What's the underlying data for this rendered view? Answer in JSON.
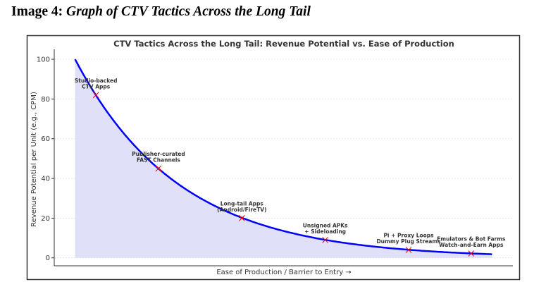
{
  "heading": {
    "prefix": "Image 4:",
    "title": "Graph of CTV Tactics Across the Long Tail"
  },
  "chart_data": {
    "type": "line",
    "title": "CTV Tactics Across the Long Tail: Revenue Potential vs. Ease of Production",
    "xlabel": "Ease of Production / Barrier to Entry →",
    "ylabel": "Revenue Potential per Unit (e.g., CPM)",
    "xlim": [
      -0.5,
      10.5
    ],
    "ylim": [
      -4,
      105
    ],
    "yticks": [
      0,
      20,
      40,
      60,
      80,
      100
    ],
    "xticks": [],
    "grid": true,
    "curve": {
      "function": "100*exp(-0.4x)",
      "x_range": [
        0,
        10
      ],
      "color": "#0000ff",
      "fill": "#e0e0f8"
    },
    "points": [
      {
        "x": 0.5,
        "y": 82,
        "label": [
          "Studio-backed",
          "CTV Apps"
        ]
      },
      {
        "x": 2,
        "y": 45,
        "label": [
          "Publisher-curated",
          "FAST Channels"
        ]
      },
      {
        "x": 4,
        "y": 20,
        "label": [
          "Long-tail Apps",
          "(Android/FireTV)"
        ]
      },
      {
        "x": 6,
        "y": 9,
        "label": [
          "Unsigned APKs",
          "+ Sideloading"
        ]
      },
      {
        "x": 8,
        "y": 4,
        "label": [
          "Pi + Proxy Loops",
          "Dummy Plug Streams"
        ]
      },
      {
        "x": 9.5,
        "y": 2.2,
        "label": [
          "Emulators & Bot Farms",
          "Watch-and-Earn Apps"
        ]
      }
    ],
    "marker_color": "#ff0000"
  }
}
